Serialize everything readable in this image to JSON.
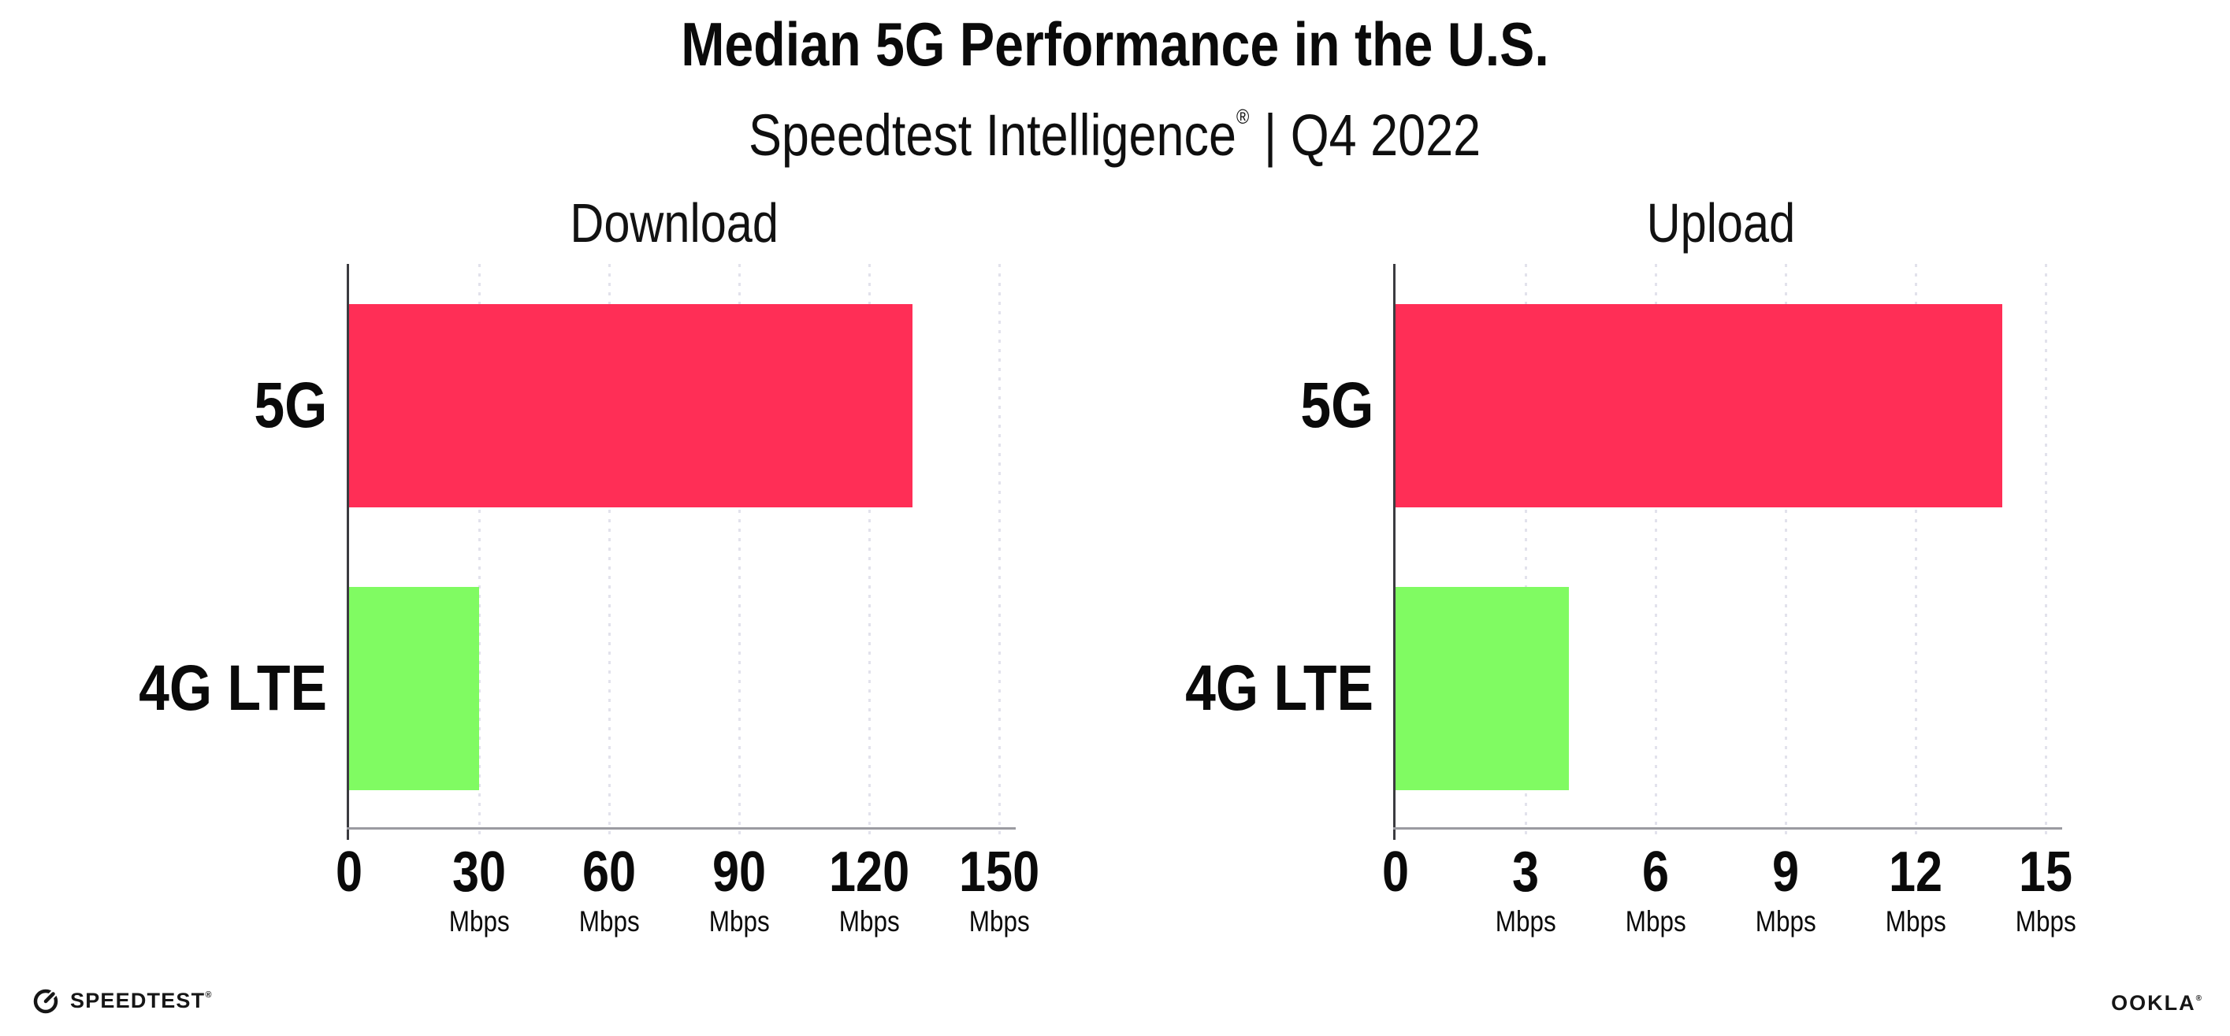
{
  "header": {
    "title": "Median 5G Performance in the U.S.",
    "subtitle_brand": "Speedtest Intelligence",
    "subtitle_reg": "®",
    "subtitle_rest": "| Q4 2022"
  },
  "footer": {
    "speedtest_label": "SPEEDTEST",
    "speedtest_reg": "®",
    "speedtest_icon": "gauge-icon",
    "ookla_label": "OOKLA",
    "ookla_reg": "®"
  },
  "colors": {
    "bar_5g": "#FF2E56",
    "bar_4g_lte": "#80FB62",
    "y_axis": "#3B3B40",
    "x_axis": "#9B9BA1",
    "gridline": "#E2E2EC",
    "text": "#0A0A0A"
  },
  "chart_data": [
    {
      "type": "bar",
      "orientation": "horizontal",
      "title": "Download",
      "categories": [
        "5G",
        "4G LTE"
      ],
      "values": [
        130,
        30
      ],
      "unit": "Mbps",
      "xlim": [
        0,
        150
      ],
      "xticks": [
        0,
        30,
        60,
        90,
        120,
        150
      ],
      "grid": "vertical-dotted",
      "legend": "none",
      "bar_colors": [
        "#FF2E56",
        "#80FB62"
      ]
    },
    {
      "type": "bar",
      "orientation": "horizontal",
      "title": "Upload",
      "categories": [
        "5G",
        "4G LTE"
      ],
      "values": [
        14,
        4
      ],
      "unit": "Mbps",
      "xlim": [
        0,
        15
      ],
      "xticks": [
        0,
        3,
        6,
        9,
        12,
        15
      ],
      "grid": "vertical-dotted",
      "legend": "none",
      "bar_colors": [
        "#FF2E56",
        "#80FB62"
      ]
    }
  ]
}
